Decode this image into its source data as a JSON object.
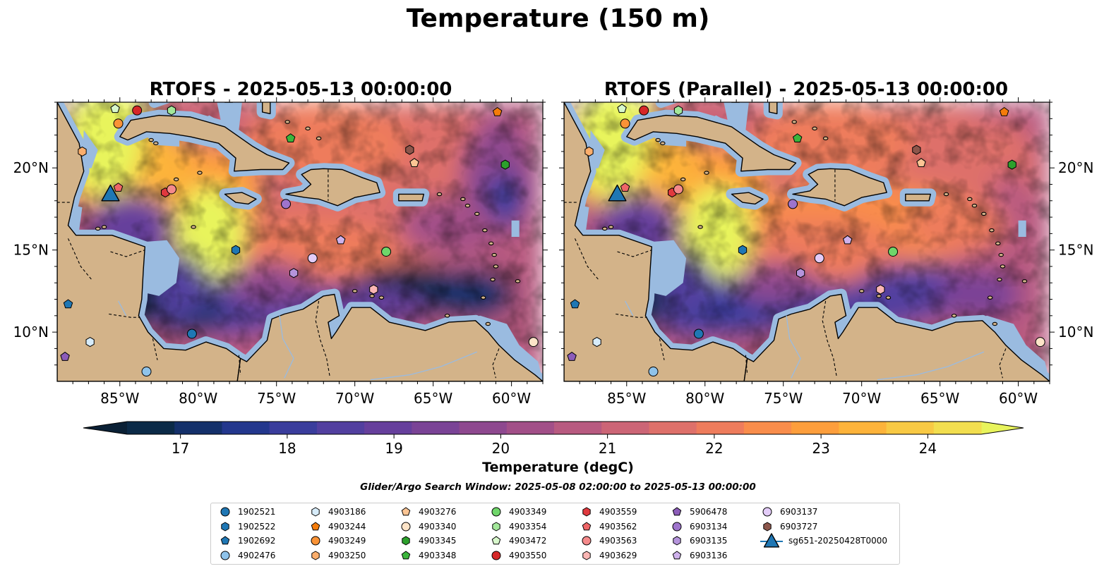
{
  "figure": {
    "title": "Temperature (150 m)"
  },
  "maps": [
    {
      "id": "rtofs",
      "title": "RTOFS - 2025-05-13 00:00:00"
    },
    {
      "id": "rtofs-parallel",
      "title": "RTOFS (Parallel) - 2025-05-13 00:00:00"
    }
  ],
  "axes": {
    "lon_ticks": [
      "85°W",
      "80°W",
      "75°W",
      "70°W",
      "65°W",
      "60°W"
    ],
    "lat_ticks": [
      "20°N",
      "15°N",
      "10°N"
    ],
    "lon_range": [
      -89,
      -58
    ],
    "lat_range": [
      7,
      24
    ]
  },
  "colorbar": {
    "label": "Temperature (degC)",
    "ticks": [
      "17",
      "18",
      "19",
      "20",
      "21",
      "22",
      "23",
      "24"
    ],
    "range": [
      16.5,
      24.5
    ],
    "colors": [
      "#0b2a47",
      "#14306a",
      "#23378d",
      "#3a3d9c",
      "#523f9f",
      "#663f9c",
      "#7a4396",
      "#8e488f",
      "#a24f88",
      "#b85a80",
      "#cc6576",
      "#de706a",
      "#ee7c5c",
      "#f98d4b",
      "#fd9e3c",
      "#fdb33a",
      "#f8c944",
      "#f2de4f"
    ],
    "low_color": "#0a2035",
    "high_color": "#e8f45c"
  },
  "search_window": "Glider/Argo Search Window: 2025-05-08 02:00:00 to 2025-05-13 00:00:00",
  "legend": [
    {
      "label": "1902521",
      "marker": "circle",
      "color": "#1f77b4"
    },
    {
      "label": "1902522",
      "marker": "hexagon",
      "color": "#1f77b4"
    },
    {
      "label": "1902692",
      "marker": "pentagon",
      "color": "#1f77b4"
    },
    {
      "label": "4902476",
      "marker": "circle",
      "color": "#8fc3ea"
    },
    {
      "label": "4903186",
      "marker": "hexagon",
      "color": "#d7ecfa"
    },
    {
      "label": "4903244",
      "marker": "pentagon",
      "color": "#f57c0a"
    },
    {
      "label": "4903249",
      "marker": "circle",
      "color": "#fa9336"
    },
    {
      "label": "4903250",
      "marker": "hexagon",
      "color": "#fbae6c"
    },
    {
      "label": "4903276",
      "marker": "pentagon",
      "color": "#fcc594"
    },
    {
      "label": "4903340",
      "marker": "circle",
      "color": "#fde4c8"
    },
    {
      "label": "4903345",
      "marker": "hexagon",
      "color": "#2ca02c"
    },
    {
      "label": "4903348",
      "marker": "pentagon",
      "color": "#3cb53c"
    },
    {
      "label": "4903349",
      "marker": "circle",
      "color": "#6fd66a"
    },
    {
      "label": "4903354",
      "marker": "hexagon",
      "color": "#a3e79a"
    },
    {
      "label": "4903472",
      "marker": "pentagon",
      "color": "#d8f8cc"
    },
    {
      "label": "4903550",
      "marker": "circle",
      "color": "#d62728"
    },
    {
      "label": "4903559",
      "marker": "hexagon",
      "color": "#e0393e"
    },
    {
      "label": "4903562",
      "marker": "pentagon",
      "color": "#ee6567"
    },
    {
      "label": "4903563",
      "marker": "circle",
      "color": "#f58a8b"
    },
    {
      "label": "4903629",
      "marker": "hexagon",
      "color": "#fbb6b4"
    },
    {
      "label": "5906478",
      "marker": "pentagon",
      "color": "#8c5cb9"
    },
    {
      "label": "6903134",
      "marker": "circle",
      "color": "#9e74cc"
    },
    {
      "label": "6903135",
      "marker": "hexagon",
      "color": "#b594dc"
    },
    {
      "label": "6903136",
      "marker": "pentagon",
      "color": "#cfb2ec"
    },
    {
      "label": "6903137",
      "marker": "circle",
      "color": "#e3ccf8"
    },
    {
      "label": "6903727",
      "marker": "hexagon",
      "color": "#8c564b"
    },
    {
      "label": "sg651-20250428T0000",
      "marker": "triangle",
      "color": "#1f77b4"
    }
  ],
  "floats": [
    {
      "id": "1902521",
      "lon": -80.4,
      "lat": 9.9
    },
    {
      "id": "1902522",
      "lon": -77.6,
      "lat": 15.0
    },
    {
      "id": "1902692",
      "lon": -88.3,
      "lat": 11.7
    },
    {
      "id": "4902476",
      "lon": -83.3,
      "lat": 7.6
    },
    {
      "id": "4903186",
      "lon": -86.9,
      "lat": 9.4
    },
    {
      "id": "4903244",
      "lon": -60.9,
      "lat": 23.4
    },
    {
      "id": "4903249",
      "lon": -85.1,
      "lat": 22.7
    },
    {
      "id": "4903250",
      "lon": -87.4,
      "lat": 21.0
    },
    {
      "id": "4903276",
      "lon": -66.2,
      "lat": 20.3
    },
    {
      "id": "4903340",
      "lon": -58.6,
      "lat": 9.4
    },
    {
      "id": "4903345",
      "lon": -60.4,
      "lat": 20.2
    },
    {
      "id": "4903348",
      "lon": -74.1,
      "lat": 21.8
    },
    {
      "id": "4903349",
      "lon": -68.0,
      "lat": 14.9
    },
    {
      "id": "4903354",
      "lon": -81.7,
      "lat": 23.5
    },
    {
      "id": "4903472",
      "lon": -85.3,
      "lat": 23.6
    },
    {
      "id": "4903550",
      "lon": -83.9,
      "lat": 23.5
    },
    {
      "id": "4903559",
      "lon": -82.1,
      "lat": 18.5
    },
    {
      "id": "4903562",
      "lon": -85.1,
      "lat": 18.8
    },
    {
      "id": "4903563",
      "lon": -81.7,
      "lat": 18.7
    },
    {
      "id": "4903629",
      "lon": -68.8,
      "lat": 12.6
    },
    {
      "id": "5906478",
      "lon": -88.5,
      "lat": 8.5
    },
    {
      "id": "6903134",
      "lon": -74.4,
      "lat": 17.8
    },
    {
      "id": "6903135",
      "lon": -73.9,
      "lat": 13.6
    },
    {
      "id": "6903136",
      "lon": -70.9,
      "lat": 15.6
    },
    {
      "id": "6903137",
      "lon": -72.7,
      "lat": 14.5
    },
    {
      "id": "6903727",
      "lon": -66.5,
      "lat": 21.1
    },
    {
      "id": "sg651-20250428T0000",
      "lon": -85.6,
      "lat": 18.4
    }
  ]
}
